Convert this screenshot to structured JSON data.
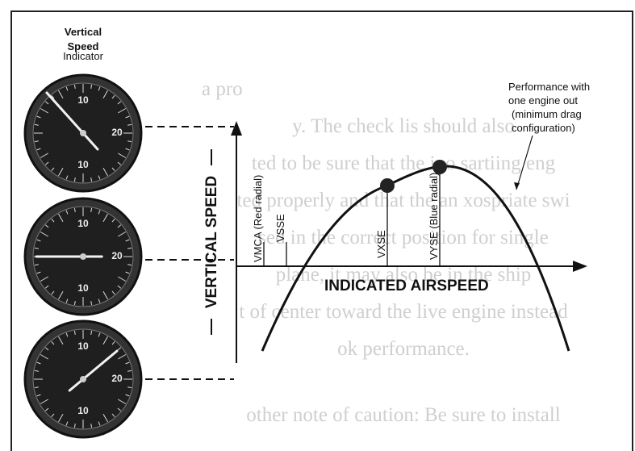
{
  "gauge_title": [
    "Vertical",
    "Speed",
    "Indicator"
  ],
  "note": [
    "Performance with",
    "one engine out",
    "(minimum drag",
    "configuration)"
  ],
  "y_axis_label": "VERTICAL SPEED",
  "x_axis_label": "INDICATED AIRSPEED",
  "speed_labels": [
    "VMCA (Red radial)",
    "VSSE",
    "VXSE",
    "VYSE (Blue radial)"
  ],
  "gauges": [
    {
      "top": "10",
      "right": "20",
      "bottom": "10"
    },
    {
      "top": "10",
      "right": "20",
      "bottom": "10"
    },
    {
      "top": "10",
      "right": "20",
      "bottom": "10"
    }
  ],
  "background_text": [
    "a pro",
    "y. The check lis should also",
    "ted to be sure that the ino sartiing eng",
    "ted properly and that the an xospriate swi",
    "sed in the correct position for single",
    "plane, it may also be in the ship",
    "t of center toward the live engine instead",
    "ok performance.",
    "other note of caution: Be sure to install"
  ]
}
